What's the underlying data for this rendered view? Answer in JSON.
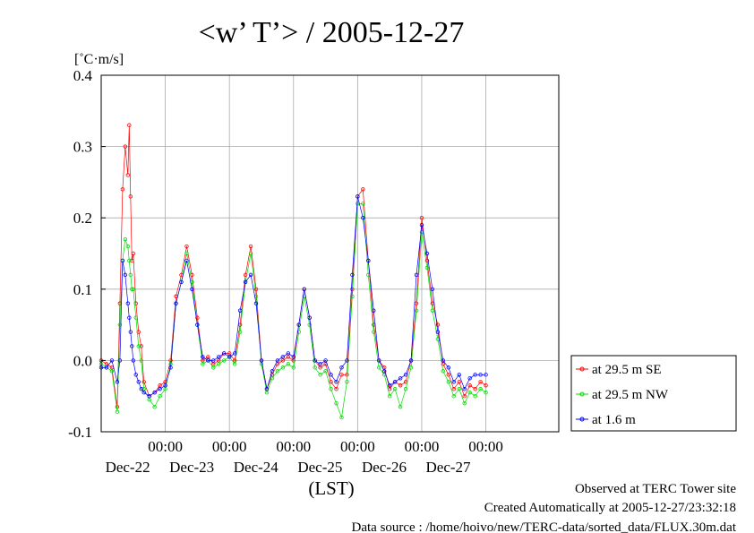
{
  "chart_data": {
    "type": "line",
    "title": "<w’ T’> / 2005-12-27",
    "ylabel": "[˚C·m/s]",
    "xlabel": "(LST)",
    "ylim": [
      -0.1,
      0.4
    ],
    "yticks": [
      "0.4",
      "0.3",
      "0.2",
      "0.1",
      "0.0",
      "-0.1"
    ],
    "ytick_values": [
      0.4,
      0.3,
      0.2,
      0.1,
      0.0,
      -0.1
    ],
    "xlim_hours": [
      0,
      144
    ],
    "xticks": [
      {
        "time": "00:00",
        "date": "Dec-22",
        "hour": 24
      },
      {
        "time": "00:00",
        "date": "Dec-23",
        "hour": 48
      },
      {
        "time": "00:00",
        "date": "Dec-24",
        "hour": 72
      },
      {
        "time": "00:00",
        "date": "Dec-25",
        "hour": 96
      },
      {
        "time": "00:00",
        "date": "Dec-26",
        "hour": 120
      },
      {
        "time": "00:00",
        "date": "Dec-27",
        "hour": 144
      }
    ],
    "grid": true,
    "legend_position": "right-bottom-outside",
    "series": [
      {
        "name": "at 29.5 m SE",
        "color": "#ff0000",
        "x": [
          0,
          2,
          4,
          6,
          7,
          8,
          9,
          10,
          10.5,
          11,
          11.5,
          12,
          13,
          14,
          15,
          16,
          18,
          20,
          22,
          24,
          26,
          28,
          30,
          32,
          34,
          36,
          38,
          40,
          42,
          44,
          46,
          48,
          50,
          52,
          54,
          56,
          58,
          60,
          62,
          64,
          66,
          68,
          70,
          72,
          74,
          76,
          78,
          80,
          82,
          84,
          86,
          88,
          90,
          92,
          94,
          96,
          98,
          100,
          102,
          104,
          106,
          108,
          110,
          112,
          114,
          116,
          118,
          120,
          122,
          124,
          126,
          128,
          130,
          132,
          134,
          136,
          138,
          140,
          142,
          144
        ],
        "y": [
          0.0,
          -0.005,
          -0.01,
          -0.065,
          0.08,
          0.24,
          0.3,
          0.26,
          0.33,
          0.23,
          0.14,
          0.15,
          0.08,
          0.04,
          0.02,
          -0.03,
          -0.05,
          -0.045,
          -0.035,
          -0.03,
          0.0,
          0.09,
          0.12,
          0.16,
          0.12,
          0.06,
          0.0,
          0.005,
          -0.005,
          0.0,
          0.01,
          0.01,
          0.0,
          0.05,
          0.12,
          0.16,
          0.1,
          0.0,
          -0.04,
          -0.02,
          -0.005,
          0.0,
          0.005,
          0.0,
          0.05,
          0.1,
          0.06,
          0.0,
          -0.01,
          -0.005,
          -0.03,
          -0.04,
          -0.02,
          -0.02,
          0.1,
          0.23,
          0.24,
          0.14,
          0.05,
          0.0,
          -0.01,
          -0.04,
          -0.03,
          -0.035,
          -0.03,
          0.0,
          0.08,
          0.2,
          0.14,
          0.08,
          0.05,
          -0.005,
          -0.02,
          -0.04,
          -0.03,
          -0.05,
          -0.035,
          -0.04,
          -0.03,
          -0.035
        ]
      },
      {
        "name": "at 29.5 m NW",
        "color": "#00dd00",
        "x": [
          0,
          2,
          4,
          6,
          7,
          8,
          9,
          10,
          10.5,
          11,
          11.5,
          12,
          13,
          14,
          15,
          16,
          18,
          20,
          22,
          24,
          26,
          28,
          30,
          32,
          34,
          36,
          38,
          40,
          42,
          44,
          46,
          48,
          50,
          52,
          54,
          56,
          58,
          60,
          62,
          64,
          66,
          68,
          70,
          72,
          74,
          76,
          78,
          80,
          82,
          84,
          86,
          88,
          90,
          92,
          94,
          96,
          98,
          100,
          102,
          104,
          106,
          108,
          110,
          112,
          114,
          116,
          118,
          120,
          122,
          124,
          126,
          128,
          130,
          132,
          134,
          136,
          138,
          140,
          142,
          144
        ],
        "y": [
          -0.005,
          -0.01,
          -0.015,
          -0.072,
          0.05,
          0.14,
          0.17,
          0.16,
          0.14,
          0.12,
          0.1,
          0.1,
          0.06,
          0.02,
          0.0,
          -0.04,
          -0.055,
          -0.065,
          -0.05,
          -0.04,
          -0.005,
          0.08,
          0.11,
          0.15,
          0.11,
          0.05,
          -0.005,
          0.0,
          -0.01,
          -0.005,
          0.0,
          0.005,
          -0.005,
          0.04,
          0.11,
          0.15,
          0.09,
          -0.005,
          -0.045,
          -0.025,
          -0.015,
          -0.01,
          -0.005,
          -0.01,
          0.04,
          0.09,
          0.05,
          -0.01,
          -0.02,
          -0.015,
          -0.04,
          -0.06,
          -0.08,
          -0.03,
          0.09,
          0.22,
          0.22,
          0.12,
          0.04,
          -0.01,
          -0.02,
          -0.05,
          -0.04,
          -0.065,
          -0.04,
          -0.01,
          0.07,
          0.18,
          0.13,
          0.07,
          0.03,
          -0.015,
          -0.03,
          -0.05,
          -0.04,
          -0.06,
          -0.045,
          -0.05,
          -0.04,
          -0.045
        ]
      },
      {
        "name": "at 1.6 m",
        "color": "#0000ff",
        "x": [
          0,
          2,
          4,
          6,
          7,
          8,
          9,
          10,
          10.5,
          11,
          11.5,
          12,
          13,
          14,
          15,
          16,
          18,
          20,
          22,
          24,
          26,
          28,
          30,
          32,
          34,
          36,
          38,
          40,
          42,
          44,
          46,
          48,
          50,
          52,
          54,
          56,
          58,
          60,
          62,
          64,
          66,
          68,
          70,
          72,
          74,
          76,
          78,
          80,
          82,
          84,
          86,
          88,
          90,
          92,
          94,
          96,
          98,
          100,
          102,
          104,
          106,
          108,
          110,
          112,
          114,
          116,
          118,
          120,
          122,
          124,
          126,
          128,
          130,
          132,
          134,
          136,
          138,
          140,
          142,
          144
        ],
        "y": [
          -0.01,
          -0.01,
          0.0,
          -0.03,
          0.0,
          0.14,
          0.12,
          0.08,
          0.06,
          0.04,
          0.02,
          0.0,
          -0.02,
          -0.03,
          -0.04,
          -0.045,
          -0.05,
          -0.045,
          -0.04,
          -0.035,
          -0.01,
          0.08,
          0.11,
          0.14,
          0.1,
          0.05,
          0.005,
          0.0,
          0.0,
          0.005,
          0.01,
          0.005,
          0.01,
          0.07,
          0.11,
          0.12,
          0.08,
          0.0,
          -0.04,
          -0.015,
          0.0,
          0.005,
          0.01,
          0.005,
          0.05,
          0.1,
          0.06,
          0.0,
          -0.005,
          0.0,
          -0.02,
          -0.03,
          -0.01,
          0.0,
          0.12,
          0.23,
          0.2,
          0.14,
          0.07,
          0.0,
          -0.015,
          -0.035,
          -0.03,
          -0.025,
          -0.02,
          0.0,
          0.12,
          0.19,
          0.15,
          0.1,
          0.04,
          0.0,
          -0.01,
          -0.03,
          -0.02,
          -0.04,
          -0.025,
          -0.02,
          -0.02,
          -0.02
        ]
      }
    ]
  },
  "footer": {
    "line1": "Observed at TERC Tower site",
    "line2": "Created Automatically at 2005-12-27/23:32:18",
    "line3": "Data source : /home/hoivo/new/TERC-data/sorted_data/FLUX.30m.dat"
  }
}
